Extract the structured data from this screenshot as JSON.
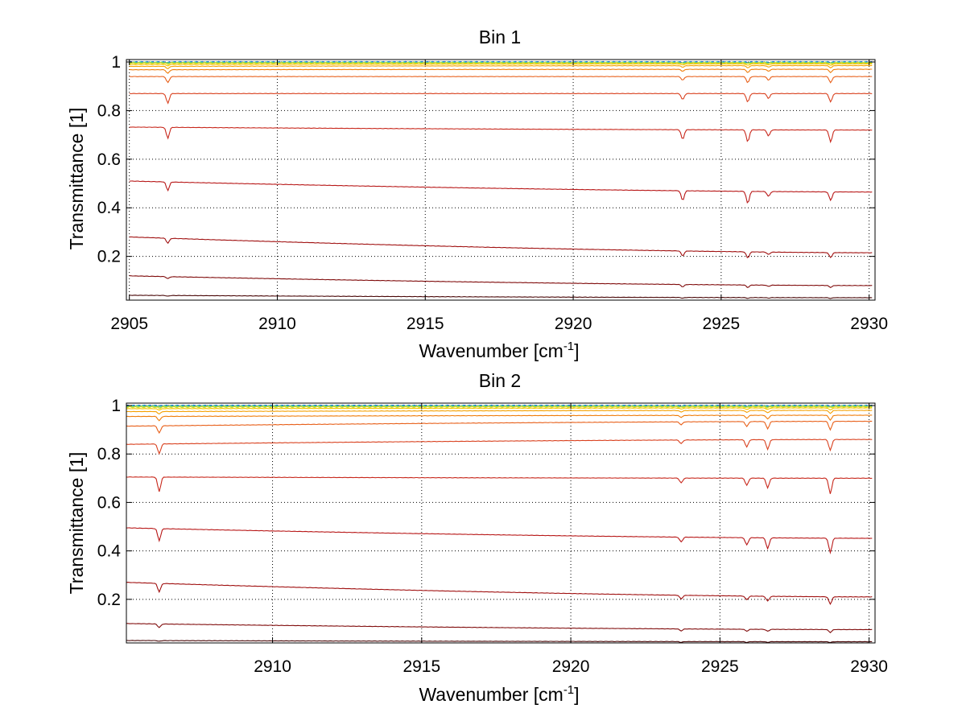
{
  "chart_data": [
    {
      "type": "line",
      "title": "Bin 1",
      "xlabel": "Wavenumber [cm",
      "xlabel_sup": "-1",
      "xlabel_suffix": "]",
      "ylabel": "Transmittance [1]",
      "xlim": [
        2904.9,
        2930.2
      ],
      "ylim": [
        0.02,
        1.01
      ],
      "xticks": [
        2905,
        2910,
        2915,
        2920,
        2925,
        2930
      ],
      "yticks": [
        0.2,
        0.4,
        0.6,
        0.8,
        1
      ],
      "ytick_labels": [
        "0.2",
        "0.4",
        "0.6",
        "0.8",
        "1"
      ],
      "grid": true,
      "legend": "none",
      "x_start": 2905.0,
      "x_end": 2930.1,
      "absorption_lines": [
        2906.3,
        2923.7,
        2925.9,
        2926.6,
        2928.7
      ],
      "series": [
        {
          "start": 1.0,
          "end": 1.0,
          "depths": [
            0.002,
            0.002,
            0.002,
            0.002,
            0.002
          ],
          "color": "#1f55c8"
        },
        {
          "start": 0.999,
          "end": 0.999,
          "depths": [
            0.002,
            0.002,
            0.002,
            0.002,
            0.002
          ],
          "color": "#22a0c8"
        },
        {
          "start": 0.998,
          "end": 0.998,
          "depths": [
            0.002,
            0.002,
            0.002,
            0.002,
            0.002
          ],
          "color": "#3cc39a"
        },
        {
          "start": 0.997,
          "end": 0.997,
          "depths": [
            0.003,
            0.003,
            0.003,
            0.003,
            0.003
          ],
          "color": "#8ed35a"
        },
        {
          "start": 0.995,
          "end": 0.996,
          "depths": [
            0.004,
            0.003,
            0.004,
            0.003,
            0.004
          ],
          "color": "#d9e021"
        },
        {
          "start": 0.99,
          "end": 0.992,
          "depths": [
            0.006,
            0.004,
            0.006,
            0.004,
            0.006
          ],
          "color": "#f5c400"
        },
        {
          "start": 0.982,
          "end": 0.985,
          "depths": [
            0.01,
            0.006,
            0.009,
            0.006,
            0.009
          ],
          "color": "#f5a000"
        },
        {
          "start": 0.968,
          "end": 0.97,
          "depths": [
            0.015,
            0.008,
            0.013,
            0.008,
            0.013
          ],
          "color": "#ef7d0a"
        },
        {
          "start": 0.94,
          "end": 0.94,
          "depths": [
            0.025,
            0.015,
            0.025,
            0.015,
            0.025
          ],
          "color": "#e8601a"
        },
        {
          "start": 0.87,
          "end": 0.87,
          "depths": [
            0.04,
            0.025,
            0.035,
            0.02,
            0.035
          ],
          "color": "#d9411f"
        },
        {
          "start": 0.732,
          "end": 0.72,
          "depths": [
            0.045,
            0.04,
            0.05,
            0.025,
            0.05
          ],
          "color": "#c8281c"
        },
        {
          "start": 0.51,
          "end": 0.465,
          "depths": [
            0.035,
            0.04,
            0.05,
            0.02,
            0.035
          ],
          "color": "#b81818"
        },
        {
          "start": 0.28,
          "end": 0.215,
          "depths": [
            0.02,
            0.02,
            0.025,
            0.01,
            0.02
          ],
          "color": "#a01010"
        },
        {
          "start": 0.12,
          "end": 0.08,
          "depths": [
            0.008,
            0.01,
            0.01,
            0.005,
            0.008
          ],
          "color": "#800c0c"
        },
        {
          "start": 0.04,
          "end": 0.03,
          "depths": [
            0.003,
            0.003,
            0.003,
            0.002,
            0.003
          ],
          "color": "#4a0808"
        }
      ]
    },
    {
      "type": "line",
      "title": "Bin 2",
      "xlabel": "Wavenumber [cm",
      "xlabel_sup": "-1",
      "xlabel_suffix": "]",
      "ylabel": "Transmittance [1]",
      "xlim": [
        2905.1,
        2930.2
      ],
      "ylim": [
        0.02,
        1.01
      ],
      "xticks": [
        2910,
        2915,
        2920,
        2925,
        2930
      ],
      "yticks": [
        0.2,
        0.4,
        0.6,
        0.8,
        1
      ],
      "ytick_labels": [
        "0.2",
        "0.4",
        "0.6",
        "0.8",
        "1"
      ],
      "grid": true,
      "legend": "none",
      "x_start": 2905.1,
      "x_end": 2930.1,
      "absorption_lines": [
        2906.2,
        2923.7,
        2925.9,
        2926.6,
        2928.7
      ],
      "series": [
        {
          "start": 1.0,
          "end": 1.0,
          "depths": [
            0.002,
            0.002,
            0.002,
            0.002,
            0.002
          ],
          "color": "#1f55c8"
        },
        {
          "start": 0.999,
          "end": 0.999,
          "depths": [
            0.002,
            0.002,
            0.002,
            0.002,
            0.002
          ],
          "color": "#22a0c8"
        },
        {
          "start": 0.998,
          "end": 0.998,
          "depths": [
            0.002,
            0.002,
            0.002,
            0.002,
            0.002
          ],
          "color": "#3cc39a"
        },
        {
          "start": 0.996,
          "end": 0.997,
          "depths": [
            0.003,
            0.003,
            0.003,
            0.003,
            0.003
          ],
          "color": "#8ed35a"
        },
        {
          "start": 0.993,
          "end": 0.995,
          "depths": [
            0.004,
            0.003,
            0.004,
            0.004,
            0.004
          ],
          "color": "#d9e021"
        },
        {
          "start": 0.987,
          "end": 0.99,
          "depths": [
            0.006,
            0.004,
            0.006,
            0.006,
            0.008
          ],
          "color": "#f5c400"
        },
        {
          "start": 0.975,
          "end": 0.98,
          "depths": [
            0.01,
            0.006,
            0.008,
            0.01,
            0.012
          ],
          "color": "#f5a000"
        },
        {
          "start": 0.955,
          "end": 0.96,
          "depths": [
            0.018,
            0.008,
            0.012,
            0.015,
            0.02
          ],
          "color": "#ef7d0a"
        },
        {
          "start": 0.915,
          "end": 0.935,
          "depths": [
            0.03,
            0.012,
            0.02,
            0.03,
            0.035
          ],
          "color": "#e8601a"
        },
        {
          "start": 0.84,
          "end": 0.86,
          "depths": [
            0.04,
            0.015,
            0.03,
            0.04,
            0.045
          ],
          "color": "#d9411f"
        },
        {
          "start": 0.705,
          "end": 0.7,
          "depths": [
            0.06,
            0.02,
            0.03,
            0.04,
            0.065
          ],
          "color": "#c8281c"
        },
        {
          "start": 0.495,
          "end": 0.452,
          "depths": [
            0.05,
            0.02,
            0.03,
            0.045,
            0.06
          ],
          "color": "#b81818"
        },
        {
          "start": 0.27,
          "end": 0.21,
          "depths": [
            0.035,
            0.015,
            0.015,
            0.02,
            0.03
          ],
          "color": "#a01010"
        },
        {
          "start": 0.1,
          "end": 0.075,
          "depths": [
            0.015,
            0.008,
            0.008,
            0.008,
            0.012
          ],
          "color": "#800c0c"
        },
        {
          "start": 0.03,
          "end": 0.025,
          "depths": [
            0.003,
            0.003,
            0.003,
            0.003,
            0.003
          ],
          "color": "#4a0808"
        }
      ]
    }
  ]
}
